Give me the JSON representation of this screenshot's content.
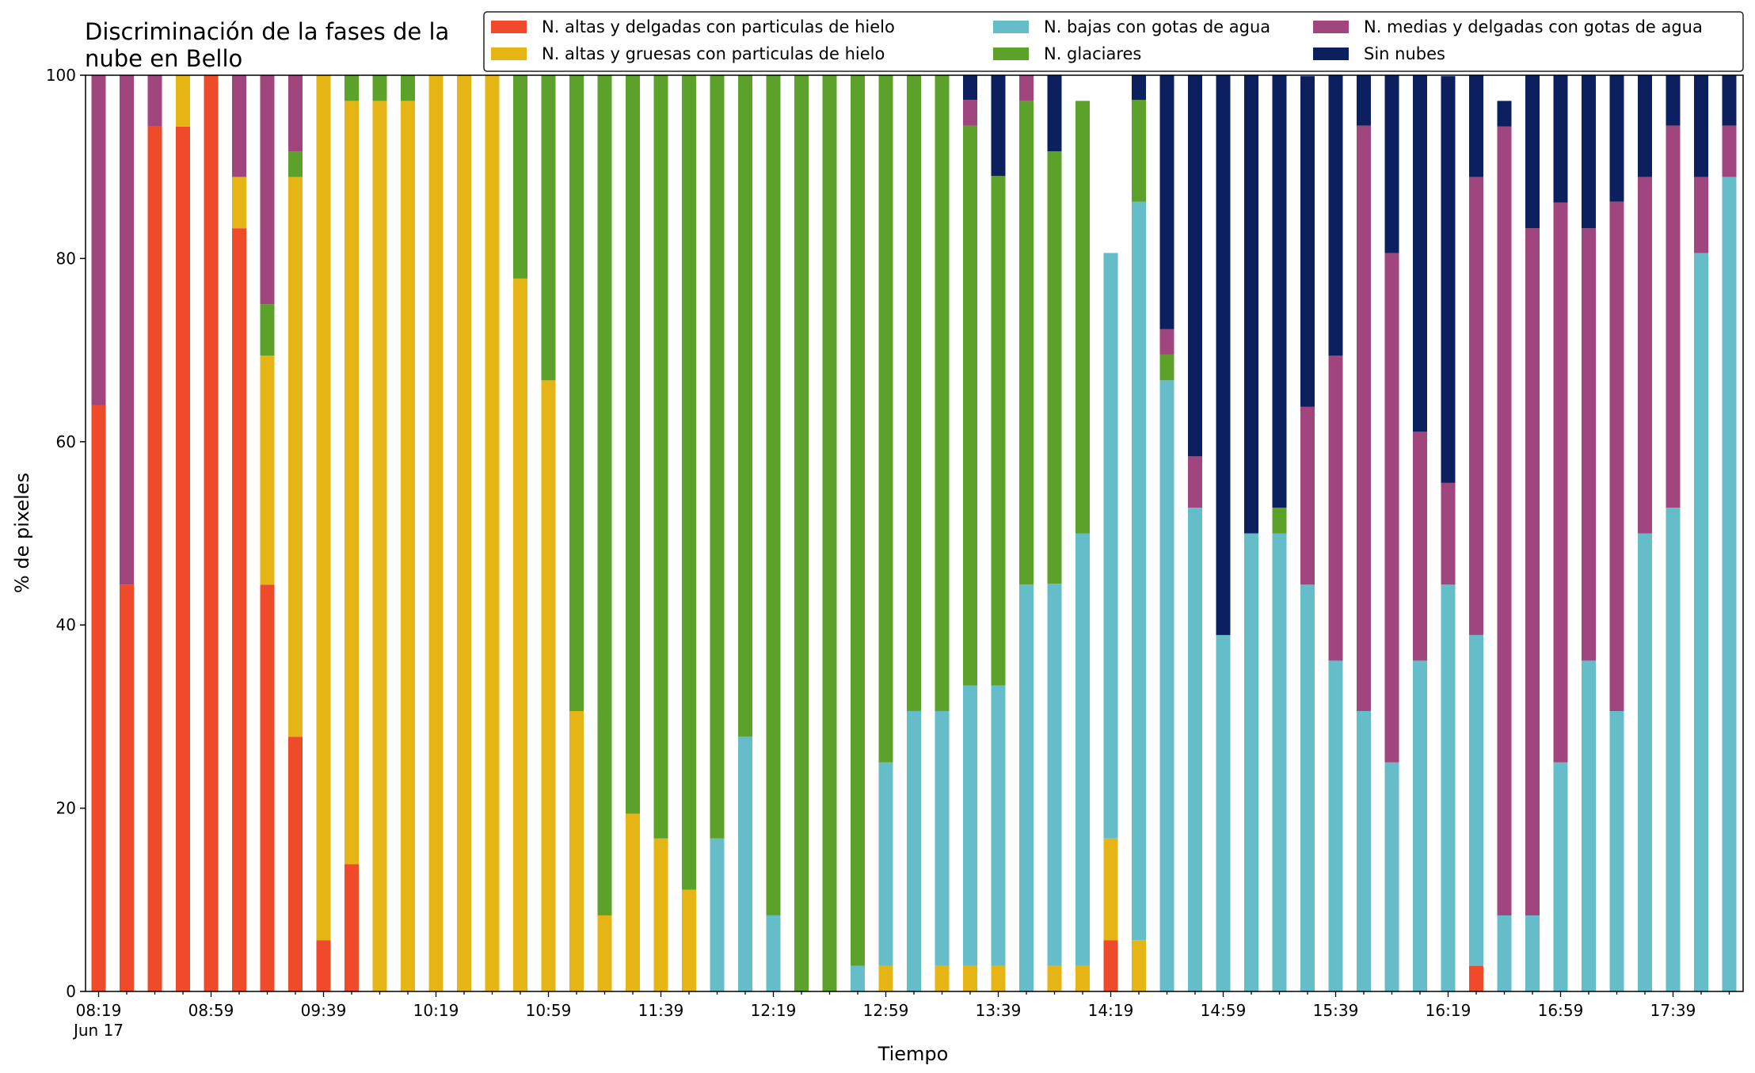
{
  "chart_data": {
    "type": "bar",
    "stacked": true,
    "title": [
      "Discriminación de la fases de la",
      "nube en Bello"
    ],
    "xlabel": "Tiempo",
    "ylabel": "% de pixeles",
    "ylim": [
      0,
      100
    ],
    "yticks": [
      0,
      20,
      40,
      60,
      80,
      100
    ],
    "grid": false,
    "legend_position": "top-right",
    "x_tick_labels": [
      {
        "index": 0,
        "label": "08:19",
        "sublabel": "Jun 17"
      },
      {
        "index": 4,
        "label": "08:59"
      },
      {
        "index": 8,
        "label": "09:39"
      },
      {
        "index": 12,
        "label": "10:19"
      },
      {
        "index": 16,
        "label": "10:59"
      },
      {
        "index": 20,
        "label": "11:39"
      },
      {
        "index": 24,
        "label": "12:19"
      },
      {
        "index": 28,
        "label": "12:59"
      },
      {
        "index": 32,
        "label": "13:39"
      },
      {
        "index": 36,
        "label": "14:19"
      },
      {
        "index": 40,
        "label": "14:59"
      },
      {
        "index": 44,
        "label": "15:39"
      },
      {
        "index": 48,
        "label": "16:19"
      },
      {
        "index": 52,
        "label": "16:59"
      },
      {
        "index": 56,
        "label": "17:39"
      }
    ],
    "series": [
      {
        "name": "N. altas y delgadas con particulas de hielo",
        "color": "#ef4b2b",
        "values": [
          64,
          44.4,
          94.4,
          94.4,
          100,
          83.3,
          44.4,
          27.8,
          5.6,
          13.9,
          0,
          0,
          0,
          0,
          0,
          0,
          0,
          0,
          0,
          0,
          0,
          0,
          0,
          0,
          0,
          0,
          0,
          0,
          0,
          0,
          0,
          0,
          0,
          0,
          0,
          0,
          5.6,
          0,
          0,
          0,
          0,
          0,
          0,
          0,
          0,
          0,
          0,
          0,
          0,
          2.8,
          0,
          0,
          0,
          0,
          0,
          0,
          0,
          0,
          0
        ]
      },
      {
        "name": "N. altas y gruesas con particulas de hielo",
        "color": "#e5b515",
        "values": [
          0,
          0,
          0,
          5.6,
          0,
          5.6,
          25,
          61.1,
          94.4,
          83.3,
          97.2,
          97.2,
          100,
          100,
          100,
          77.8,
          66.7,
          30.6,
          8.3,
          19.4,
          16.7,
          11.1,
          0,
          0,
          0,
          0,
          0,
          0,
          2.8,
          0,
          2.8,
          2.8,
          2.8,
          0,
          2.8,
          2.8,
          11.1,
          5.6,
          0,
          0,
          0,
          0,
          0,
          0,
          0,
          0,
          0,
          0,
          0,
          0,
          0,
          0,
          0,
          0,
          0,
          0,
          0,
          0,
          0
        ]
      },
      {
        "name": "N. bajas con gotas de agua",
        "color": "#64bdc8",
        "values": [
          0,
          0,
          0,
          0,
          0,
          0,
          0,
          0,
          0,
          0,
          0,
          0,
          0,
          0,
          0,
          0,
          0,
          0,
          0,
          0,
          0,
          0,
          16.7,
          27.8,
          8.3,
          0,
          0,
          2.8,
          22.2,
          30.6,
          27.8,
          30.6,
          30.6,
          44.4,
          41.7,
          47.2,
          63.9,
          80.6,
          66.7,
          52.8,
          38.9,
          50,
          50,
          44.4,
          36.1,
          30.6,
          25,
          36.1,
          44.4,
          36.1,
          8.3,
          8.3,
          25,
          36.1,
          30.6,
          50,
          52.8,
          80.6,
          88.9
        ]
      },
      {
        "name": "N. glaciares",
        "color": "#5ca12a",
        "values": [
          0,
          0,
          0,
          0,
          0,
          0,
          5.6,
          2.8,
          0,
          2.8,
          2.8,
          2.8,
          0,
          0,
          0,
          22.2,
          33.3,
          69.4,
          91.7,
          80.6,
          83.3,
          88.9,
          83.3,
          72.2,
          91.7,
          100,
          100,
          97.2,
          75,
          69.4,
          69.4,
          61.1,
          55.6,
          52.8,
          47.2,
          47.2,
          0,
          11.1,
          2.8,
          0,
          0,
          0,
          2.8,
          0,
          0,
          0,
          0,
          0,
          0,
          0,
          0,
          0,
          0,
          0,
          0,
          0,
          0,
          0,
          0
        ]
      },
      {
        "name": "N. medias y delgadas con gotas de agua",
        "color": "#a0457d",
        "values": [
          36,
          55.6,
          5.6,
          0,
          0,
          11.1,
          25,
          8.3,
          0,
          0,
          0,
          0,
          0,
          0,
          0,
          0,
          0,
          0,
          0,
          0,
          0,
          0,
          0,
          0,
          0,
          0,
          0,
          0,
          0,
          0,
          0,
          2.8,
          0,
          2.8,
          0,
          0,
          0,
          0,
          2.8,
          5.6,
          0,
          0,
          0,
          19.4,
          33.3,
          63.9,
          55.6,
          25,
          11.1,
          50,
          86.1,
          75,
          61.1,
          47.2,
          55.6,
          38.9,
          41.7,
          8.3,
          5.6
        ]
      },
      {
        "name": "Sin nubes",
        "color": "#0c205f",
        "values": [
          0,
          0,
          0,
          0,
          0,
          0,
          0,
          0,
          0,
          0,
          0,
          0,
          0,
          0,
          0,
          0,
          0,
          0,
          0,
          0,
          0,
          0,
          0,
          0,
          0,
          0,
          0,
          0,
          0,
          0,
          0,
          2.8,
          11.1,
          0,
          8.3,
          0,
          0,
          2.8,
          27.8,
          41.7,
          61.1,
          50,
          47.2,
          36.1,
          30.6,
          5.6,
          19.4,
          38.9,
          44.4,
          13.9,
          2.8,
          16.7,
          13.9,
          16.7,
          13.9,
          11.1,
          5.6,
          11.1,
          5.5
        ]
      }
    ]
  }
}
